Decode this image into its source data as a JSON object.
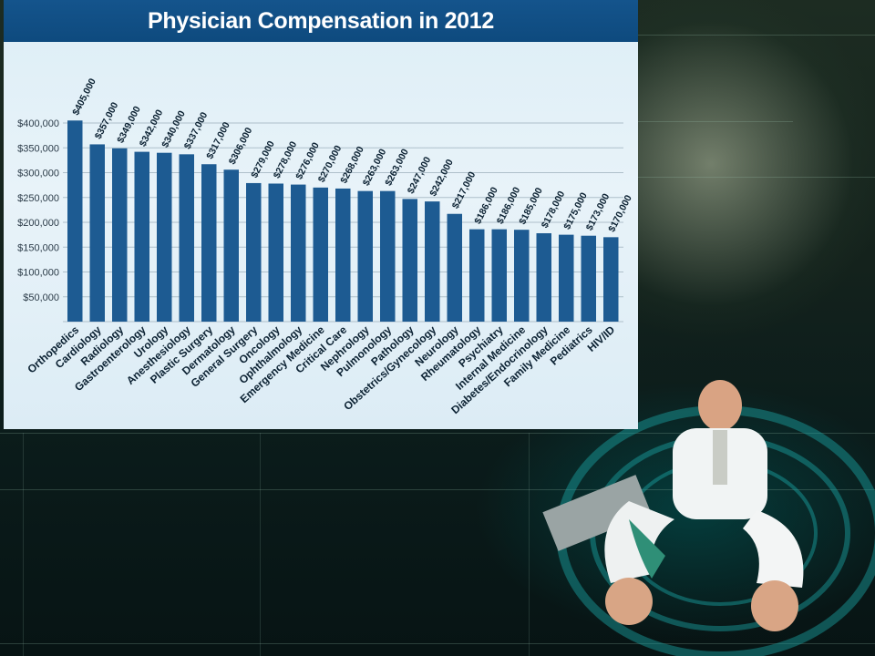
{
  "chart_data": {
    "type": "bar",
    "title": "Physician Compensation in 2012",
    "xlabel": "",
    "ylabel": "",
    "ylim": [
      0,
      450000
    ],
    "yticks": [
      50000,
      100000,
      150000,
      200000,
      250000,
      300000,
      350000,
      400000
    ],
    "ytick_labels": [
      "$50,000",
      "$100,000",
      "$150,000",
      "$200,000",
      "$250,000",
      "$300,000",
      "$350,000",
      "$400,000"
    ],
    "grid": true,
    "bar_color": "#1d5b92",
    "categories": [
      "Orthopedics",
      "Cardiology",
      "Radiology",
      "Gastroenterology",
      "Urology",
      "Anesthesiology",
      "Plastic Surgery",
      "Dermatology",
      "General Surgery",
      "Oncology",
      "Ophthalmology",
      "Emergency Medicine",
      "Critical Care",
      "Nephrology",
      "Pulmonology",
      "Pathology",
      "Obstetrics/Gynecology",
      "Neurology",
      "Rheumatology",
      "Psychiatry",
      "Internal Medicine",
      "Diabetes/Endocrinology",
      "Family Medicine",
      "Pediatrics",
      "HIV/ID"
    ],
    "values": [
      405000,
      357000,
      349000,
      342000,
      340000,
      337000,
      317000,
      306000,
      279000,
      278000,
      276000,
      270000,
      268000,
      263000,
      263000,
      247000,
      242000,
      217000,
      186000,
      186000,
      185000,
      178000,
      175000,
      173000,
      170000
    ],
    "value_labels": [
      "$405,000",
      "$357,000",
      "$349,000",
      "$342,000",
      "$340,000",
      "$337,000",
      "$317,000",
      "$306,000",
      "$279,000",
      "$278,000",
      "$276,000",
      "$270,000",
      "$268,000",
      "$263,000",
      "$263,000",
      "$247,000",
      "$242,000",
      "$217,000",
      "$186,000",
      "$186,000",
      "$185,000",
      "$178,000",
      "$175,000",
      "$173,000",
      "$170,000"
    ]
  }
}
